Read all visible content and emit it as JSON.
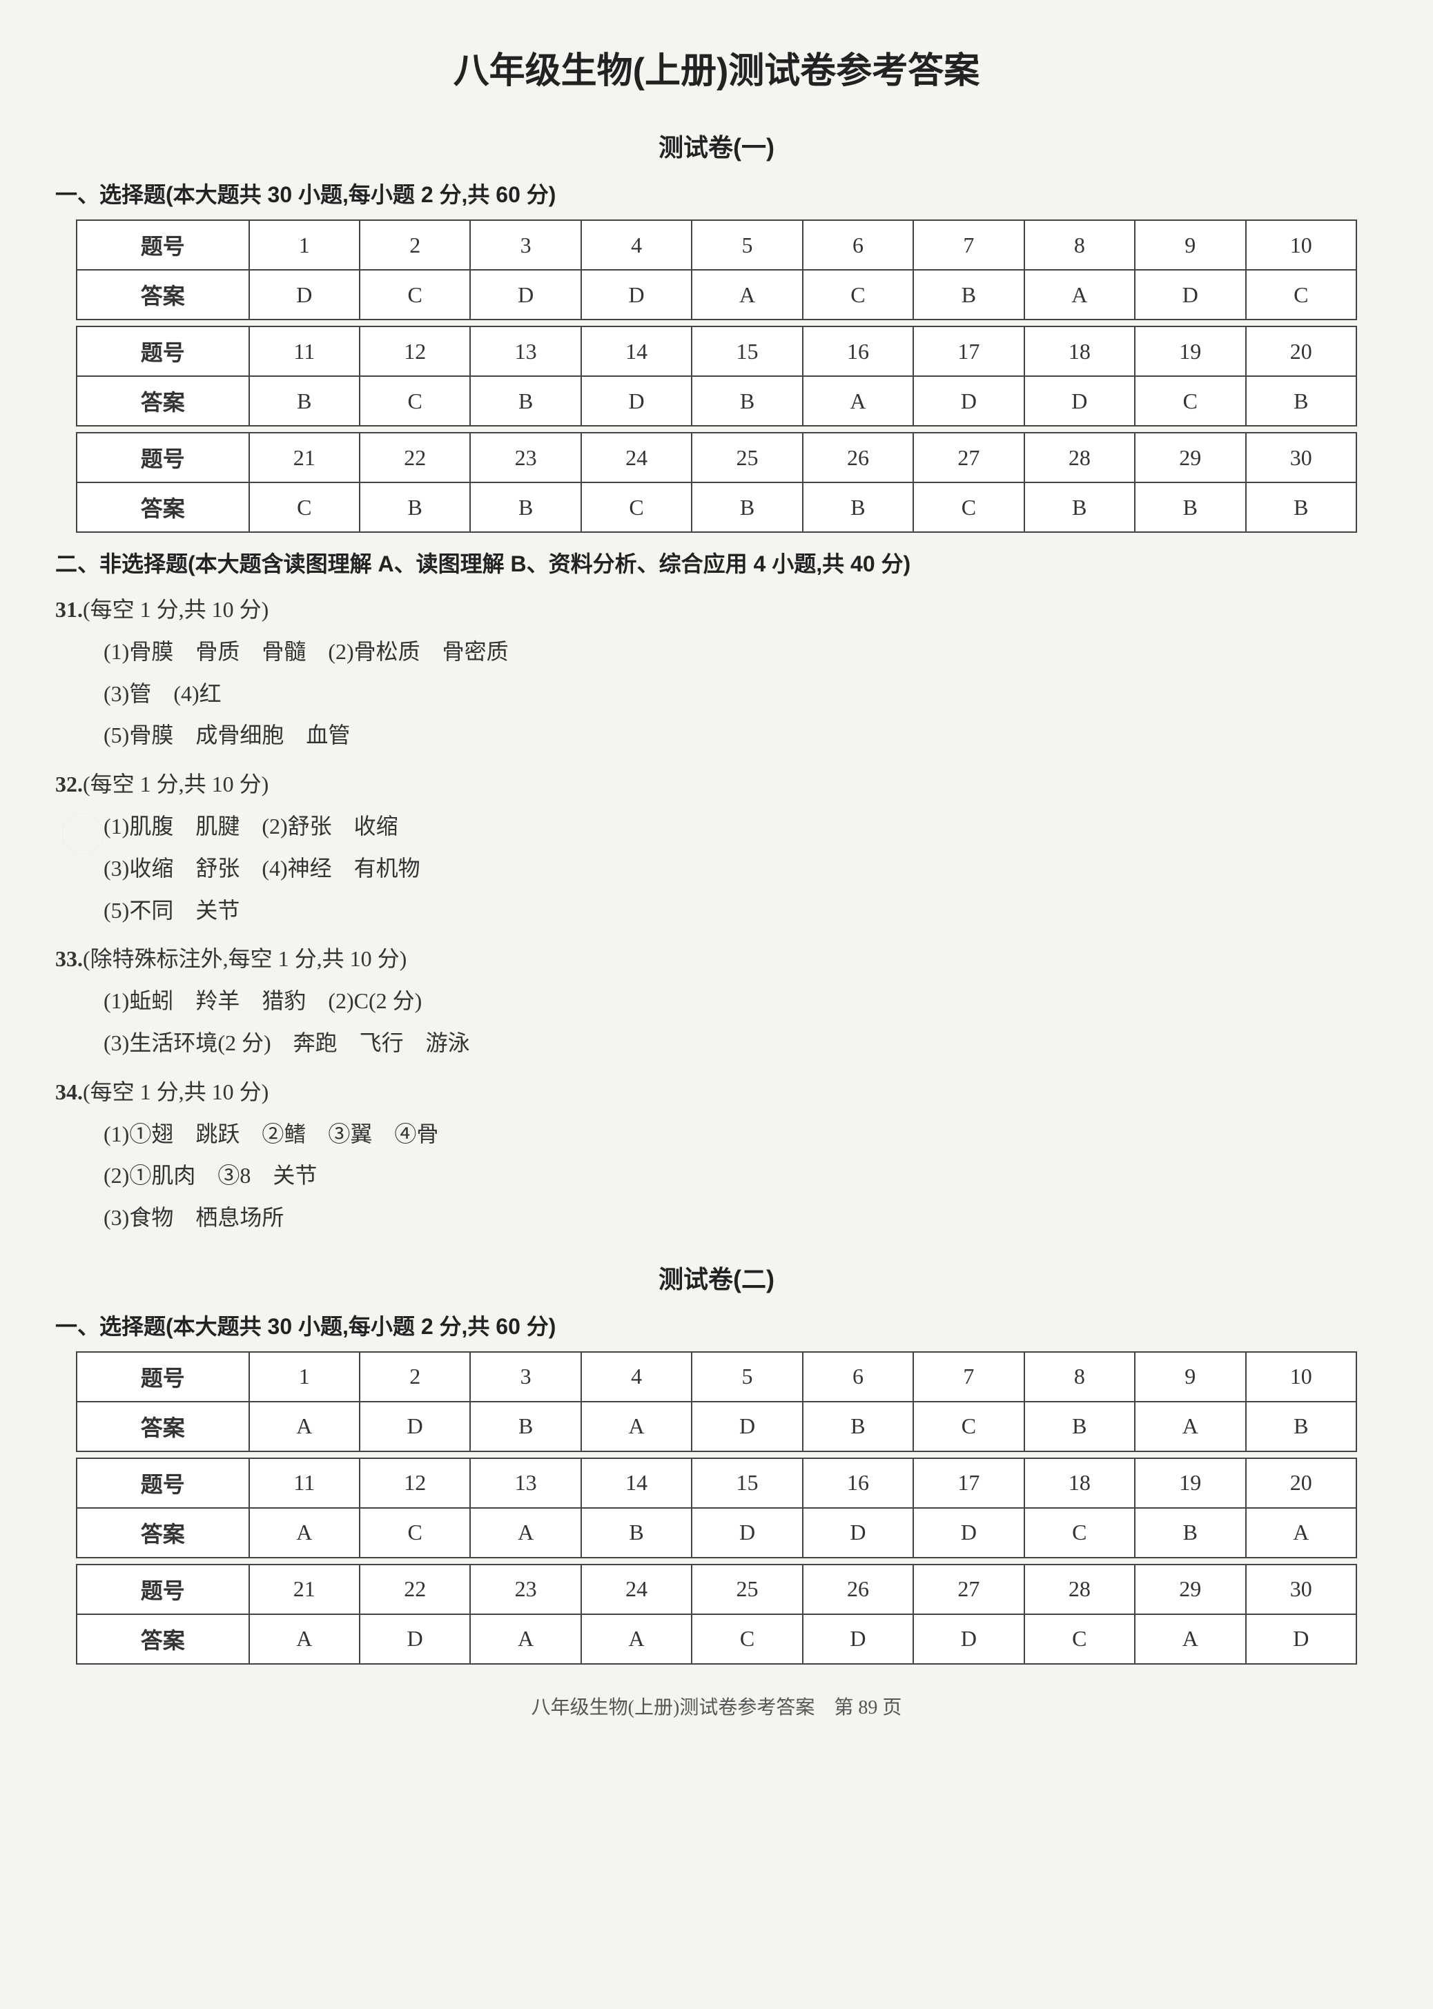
{
  "page_title": "八年级生物(上册)测试卷参考答案",
  "footer": "八年级生物(上册)测试卷参考答案　第 89 页",
  "tests": [
    {
      "title": "测试卷(一)",
      "mc_heading": "一、选择题(本大题共 30 小题,每小题 2 分,共 60 分)",
      "labels": {
        "qnum": "题号",
        "ans": "答案"
      },
      "rows": [
        {
          "nums": [
            "1",
            "2",
            "3",
            "4",
            "5",
            "6",
            "7",
            "8",
            "9",
            "10"
          ],
          "ans": [
            "D",
            "C",
            "D",
            "D",
            "A",
            "C",
            "B",
            "A",
            "D",
            "C"
          ]
        },
        {
          "nums": [
            "11",
            "12",
            "13",
            "14",
            "15",
            "16",
            "17",
            "18",
            "19",
            "20"
          ],
          "ans": [
            "B",
            "C",
            "B",
            "D",
            "B",
            "A",
            "D",
            "D",
            "C",
            "B"
          ]
        },
        {
          "nums": [
            "21",
            "22",
            "23",
            "24",
            "25",
            "26",
            "27",
            "28",
            "29",
            "30"
          ],
          "ans": [
            "C",
            "B",
            "B",
            "C",
            "B",
            "B",
            "C",
            "B",
            "B",
            "B"
          ]
        }
      ],
      "nonmc_heading": "二、非选择题(本大题含读图理解 A、读图理解 B、资料分析、综合应用 4 小题,共 40 分)",
      "questions": [
        {
          "num": "31.",
          "score": "(每空 1 分,共 10 分)",
          "lines": [
            "(1)骨膜　骨质　骨髓　(2)骨松质　骨密质",
            "(3)管　(4)红",
            "(5)骨膜　成骨细胞　血管"
          ]
        },
        {
          "num": "32.",
          "score": "(每空 1 分,共 10 分)",
          "lines": [
            "(1)肌腹　肌腱　(2)舒张　收缩",
            "(3)收缩　舒张　(4)神经　有机物",
            "(5)不同　关节"
          ]
        },
        {
          "num": "33.",
          "score": "(除特殊标注外,每空 1 分,共 10 分)",
          "lines": [
            "(1)蚯蚓　羚羊　猎豹　(2)C(2 分)",
            "(3)生活环境(2 分)　奔跑　飞行　游泳"
          ]
        },
        {
          "num": "34.",
          "score": "(每空 1 分,共 10 分)",
          "lines": [
            "(1)①翅　跳跃　②鳍　③翼　④骨",
            "(2)①肌肉　③8　关节",
            "(3)食物　栖息场所"
          ]
        }
      ]
    },
    {
      "title": "测试卷(二)",
      "mc_heading": "一、选择题(本大题共 30 小题,每小题 2 分,共 60 分)",
      "labels": {
        "qnum": "题号",
        "ans": "答案"
      },
      "rows": [
        {
          "nums": [
            "1",
            "2",
            "3",
            "4",
            "5",
            "6",
            "7",
            "8",
            "9",
            "10"
          ],
          "ans": [
            "A",
            "D",
            "B",
            "A",
            "D",
            "B",
            "C",
            "B",
            "A",
            "B"
          ]
        },
        {
          "nums": [
            "11",
            "12",
            "13",
            "14",
            "15",
            "16",
            "17",
            "18",
            "19",
            "20"
          ],
          "ans": [
            "A",
            "C",
            "A",
            "B",
            "D",
            "D",
            "D",
            "C",
            "B",
            "A"
          ]
        },
        {
          "nums": [
            "21",
            "22",
            "23",
            "24",
            "25",
            "26",
            "27",
            "28",
            "29",
            "30"
          ],
          "ans": [
            "A",
            "D",
            "A",
            "A",
            "C",
            "D",
            "D",
            "C",
            "A",
            "D"
          ]
        }
      ],
      "nonmc_heading": "",
      "questions": []
    }
  ],
  "colors": {
    "background": "#f5f4f0",
    "text": "#333333",
    "border": "#444444",
    "table_bg": "#ffffff"
  }
}
